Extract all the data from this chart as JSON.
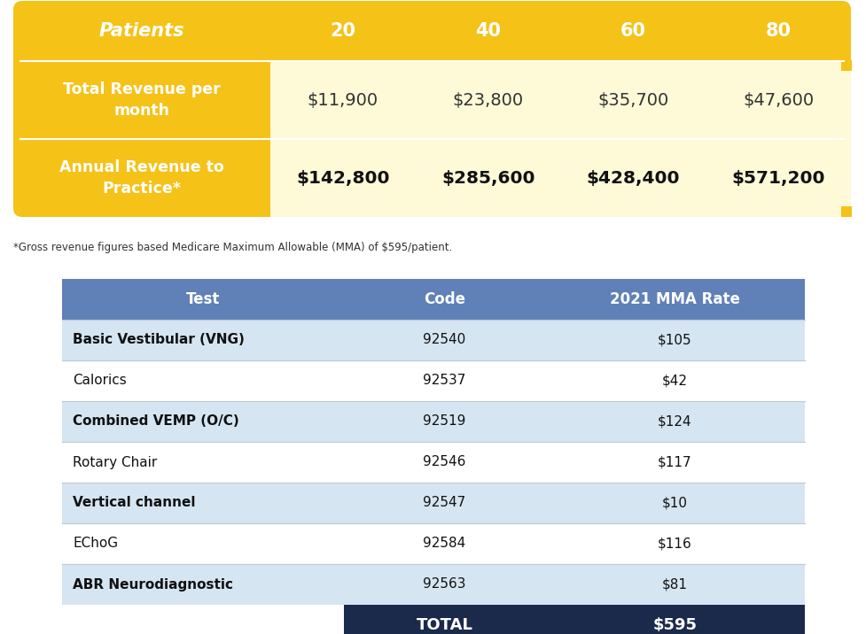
{
  "background_color": "#ffffff",
  "top_table": {
    "header_row": {
      "col0_label": "Patients",
      "cols": [
        "20",
        "40",
        "60",
        "80"
      ]
    },
    "row1": {
      "label": "Total Revenue per\nmonth",
      "values": [
        "$11,900",
        "$23,800",
        "$35,700",
        "$47,600"
      ],
      "values_bg": "#FEF9D7"
    },
    "row2": {
      "label": "Annual Revenue to\nPractice*",
      "values": [
        "$142,800",
        "$285,600",
        "$428,400",
        "$571,200"
      ],
      "values_bg": "#FEF9D7"
    }
  },
  "top_table_gold": "#F5C218",
  "footnote": "*Gross revenue figures based Medicare Maximum Allowable (MMA) of $595/patient.",
  "bottom_table": {
    "header": {
      "cols": [
        "Test",
        "Code",
        "2021 MMA Rate"
      ],
      "bg": "#6080B8",
      "text_color": "#ffffff"
    },
    "rows": [
      {
        "test": "Basic Vestibular (VNG)",
        "code": "92540",
        "rate": "$105",
        "bg": "#D5E5F2",
        "bold": true
      },
      {
        "test": "Calorics",
        "code": "92537",
        "rate": "$42",
        "bg": "#ffffff",
        "bold": false
      },
      {
        "test": "Combined VEMP (O/C)",
        "code": "92519",
        "rate": "$124",
        "bg": "#D5E5F2",
        "bold": true
      },
      {
        "test": "Rotary Chair",
        "code": "92546",
        "rate": "$117",
        "bg": "#ffffff",
        "bold": false
      },
      {
        "test": "Vertical channel",
        "code": "92547",
        "rate": "$10",
        "bg": "#D5E5F2",
        "bold": true
      },
      {
        "test": "EChoG",
        "code": "92584",
        "rate": "$116",
        "bg": "#ffffff",
        "bold": false
      },
      {
        "test": "ABR Neurodiagnostic",
        "code": "92563",
        "rate": "$81",
        "bg": "#D5E5F2",
        "bold": true
      }
    ],
    "total_row": {
      "label": "TOTAL",
      "value": "$595",
      "bg": "#1B2A4A",
      "text_color": "#ffffff"
    }
  }
}
